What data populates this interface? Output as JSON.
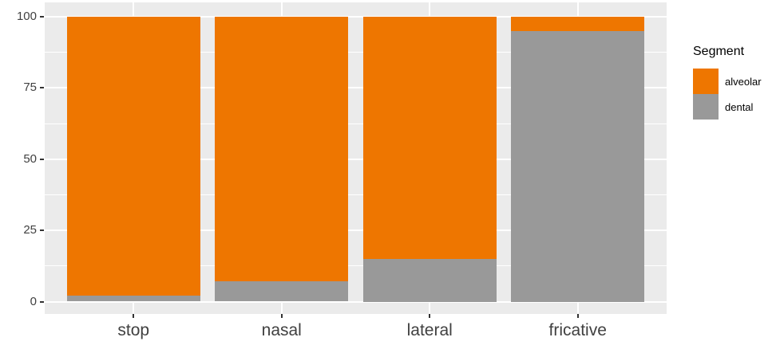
{
  "chart_data": {
    "type": "bar",
    "stacked": true,
    "orientation": "vertical",
    "title": "",
    "xlabel": "",
    "ylabel": "",
    "categories": [
      "stop",
      "nasal",
      "lateral",
      "fricative"
    ],
    "series": [
      {
        "name": "alveolar",
        "color": "#EE7600",
        "values": [
          98,
          93,
          85,
          5
        ]
      },
      {
        "name": "dental",
        "color": "#999999",
        "values": [
          2,
          7,
          15,
          95
        ]
      }
    ],
    "stack_order_top_to_bottom": [
      "alveolar",
      "dental"
    ],
    "ylim": [
      0,
      100
    ],
    "y_major_ticks": [
      "0",
      "25",
      "50",
      "75",
      "100"
    ],
    "y_major_values": [
      0,
      25,
      50,
      75,
      100
    ],
    "y_minor_values": [
      12.5,
      37.5,
      62.5,
      87.5
    ],
    "legend": {
      "title": "Segment",
      "position": "right"
    },
    "style": {
      "panel_bg": "#EBEBEB",
      "grid_color": "#FFFFFF",
      "axis_text_color": "#404040",
      "tick_color": "#333333",
      "grid": "major and minor horizontal lines, major vertical at category centers"
    }
  }
}
